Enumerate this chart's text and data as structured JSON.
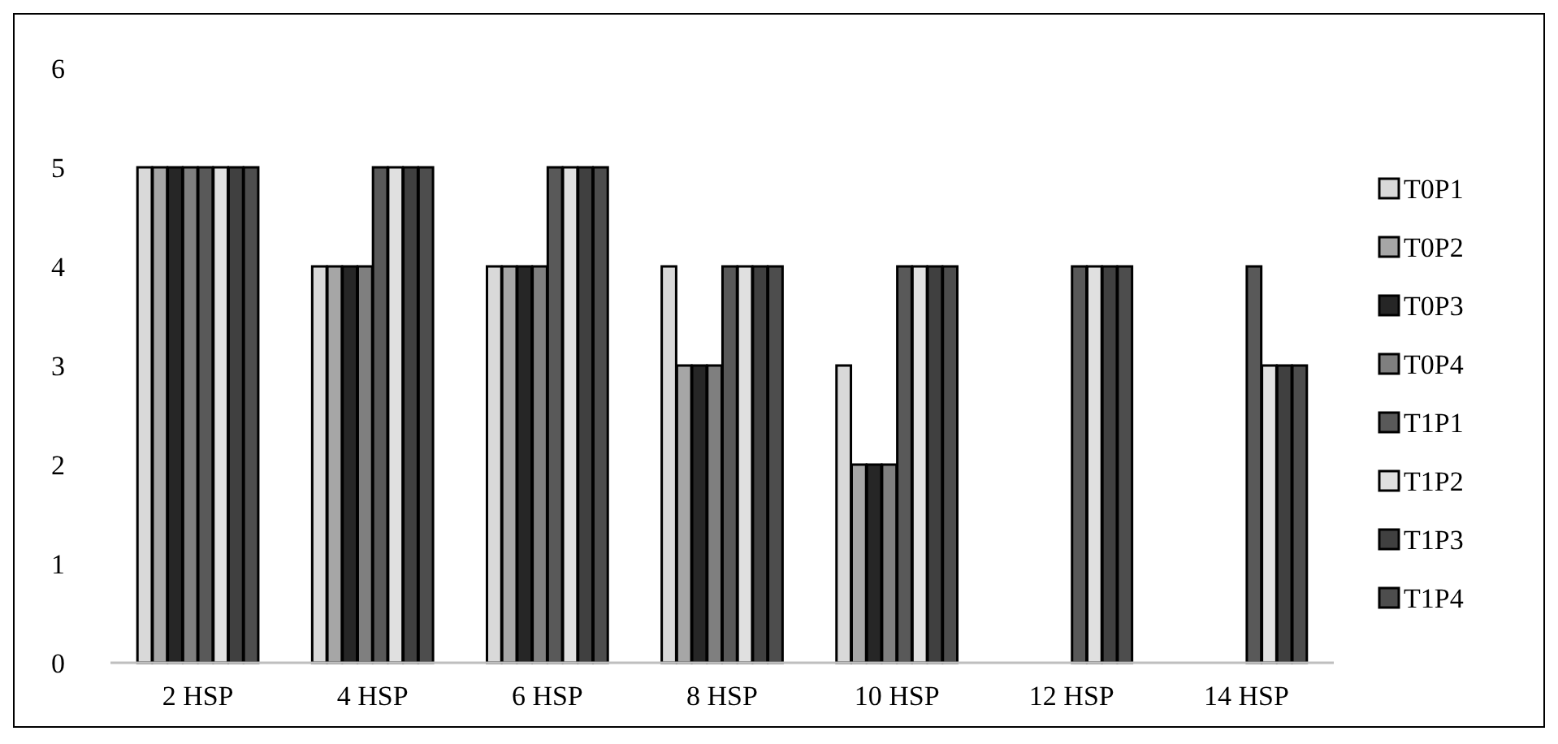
{
  "chart_data": {
    "type": "bar",
    "categories": [
      "2 HSP",
      "4 HSP",
      "6 HSP",
      "8 HSP",
      "10 HSP",
      "12 HSP",
      "14 HSP"
    ],
    "series": [
      {
        "name": "T0P1",
        "color": "#d9d9d9",
        "values": [
          5,
          4,
          4,
          4,
          3,
          0,
          0
        ]
      },
      {
        "name": "T0P2",
        "color": "#a6a6a6",
        "values": [
          5,
          4,
          4,
          3,
          2,
          0,
          0
        ]
      },
      {
        "name": "T0P3",
        "color": "#262626",
        "values": [
          5,
          4,
          4,
          3,
          2,
          0,
          0
        ]
      },
      {
        "name": "T0P4",
        "color": "#7f7f7f",
        "values": [
          5,
          4,
          4,
          3,
          2,
          0,
          0
        ]
      },
      {
        "name": "T1P1",
        "color": "#595959",
        "values": [
          5,
          5,
          5,
          4,
          4,
          4,
          4
        ]
      },
      {
        "name": "T1P2",
        "color": "#e0e0e0",
        "values": [
          5,
          5,
          5,
          4,
          4,
          4,
          3
        ]
      },
      {
        "name": "T1P3",
        "color": "#404040",
        "values": [
          5,
          5,
          5,
          4,
          4,
          4,
          3
        ]
      },
      {
        "name": "T1P4",
        "color": "#4d4d4d",
        "values": [
          5,
          5,
          5,
          4,
          4,
          4,
          3
        ]
      }
    ],
    "ylim": [
      0,
      6
    ],
    "yticks": [
      0,
      1,
      2,
      3,
      4,
      5,
      6
    ],
    "grid": false,
    "legend": "right"
  }
}
